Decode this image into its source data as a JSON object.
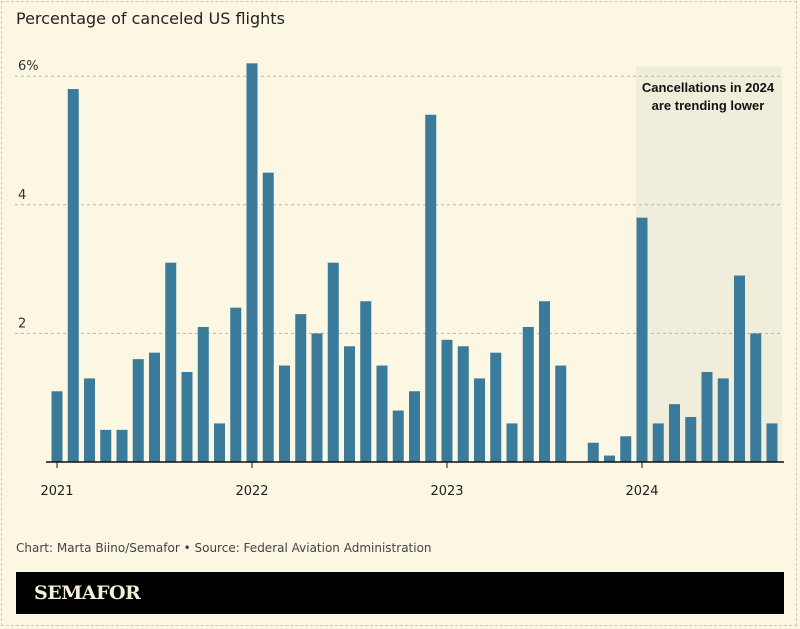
{
  "chart_data": {
    "type": "bar",
    "title": "Percentage of canceled US flights",
    "x_start": "2021-01",
    "frequency": "monthly",
    "x_tick_labels": [
      "2021",
      "2022",
      "2023",
      "2024"
    ],
    "y_tick_labels": [
      "6%",
      "4",
      "2"
    ],
    "y_ticks": [
      2,
      4,
      6
    ],
    "ylim": [
      0,
      6.4
    ],
    "grid": true,
    "categories": [
      "2021-01",
      "2021-02",
      "2021-03",
      "2021-04",
      "2021-05",
      "2021-06",
      "2021-07",
      "2021-08",
      "2021-09",
      "2021-10",
      "2021-11",
      "2021-12",
      "2022-01",
      "2022-02",
      "2022-03",
      "2022-04",
      "2022-05",
      "2022-06",
      "2022-07",
      "2022-08",
      "2022-09",
      "2022-10",
      "2022-11",
      "2022-12",
      "2023-01",
      "2023-02",
      "2023-03",
      "2023-04",
      "2023-05",
      "2023-06",
      "2023-07",
      "2023-08",
      "2023-09",
      "2023-10",
      "2023-11",
      "2023-12",
      "2024-01",
      "2024-02",
      "2024-03",
      "2024-04",
      "2024-05",
      "2024-06",
      "2024-07",
      "2024-08",
      "2024-09"
    ],
    "values": [
      1.1,
      5.8,
      1.3,
      0.5,
      0.5,
      1.6,
      1.7,
      3.1,
      1.4,
      2.1,
      0.6,
      2.4,
      6.2,
      4.5,
      1.5,
      2.3,
      2.0,
      3.1,
      1.8,
      2.5,
      1.5,
      0.8,
      1.1,
      5.4,
      1.9,
      1.8,
      1.3,
      1.7,
      0.6,
      2.1,
      2.5,
      1.5,
      null,
      0.3,
      0.1,
      0.4,
      3.8,
      0.6,
      0.9,
      0.7,
      1.4,
      1.3,
      2.9,
      2.0,
      0.6
    ],
    "annotation": {
      "lines": [
        "Cancellations in 2024",
        "are trending lower"
      ],
      "highlight_from": "2024-01"
    },
    "colors": {
      "bar": "#3a7a9b",
      "background": "#fcf7e3",
      "highlight": "#f0eddb"
    }
  },
  "footer": {
    "credit": "Chart: Marta Biino/Semafor • Source: Federal Aviation Administration",
    "logo": "SEMAFOR"
  }
}
